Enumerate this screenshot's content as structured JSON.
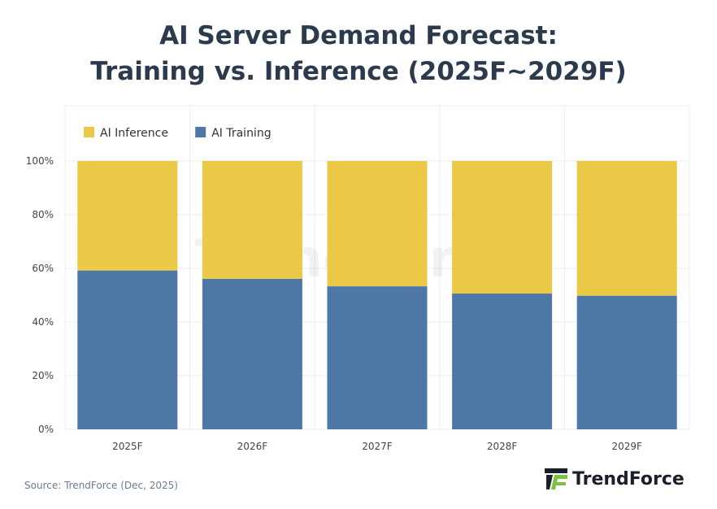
{
  "title_line1": "AI Server Demand Forecast:",
  "title_line2": "Training vs. Inference (2025F~2029F)",
  "source": "Source: TrendForce (Dec, 2025)",
  "logo_text": "TrendForce",
  "watermark": "TrendForce",
  "chart_data": {
    "type": "bar",
    "stacked": true,
    "categories": [
      "2025F",
      "2026F",
      "2027F",
      "2028F",
      "2029F"
    ],
    "series": [
      {
        "name": "AI Training",
        "color": "#4e79a7",
        "values": [
          59.2,
          56.1,
          53.3,
          50.6,
          49.8
        ]
      },
      {
        "name": "AI Inference",
        "color": "#ebc845",
        "values": [
          40.8,
          43.9,
          46.7,
          49.4,
          50.2
        ]
      }
    ],
    "yticks": [
      "0%",
      "20%",
      "40%",
      "60%",
      "80%",
      "100%"
    ],
    "ylim": [
      0,
      100
    ],
    "legend": "top-left",
    "grid": true
  }
}
